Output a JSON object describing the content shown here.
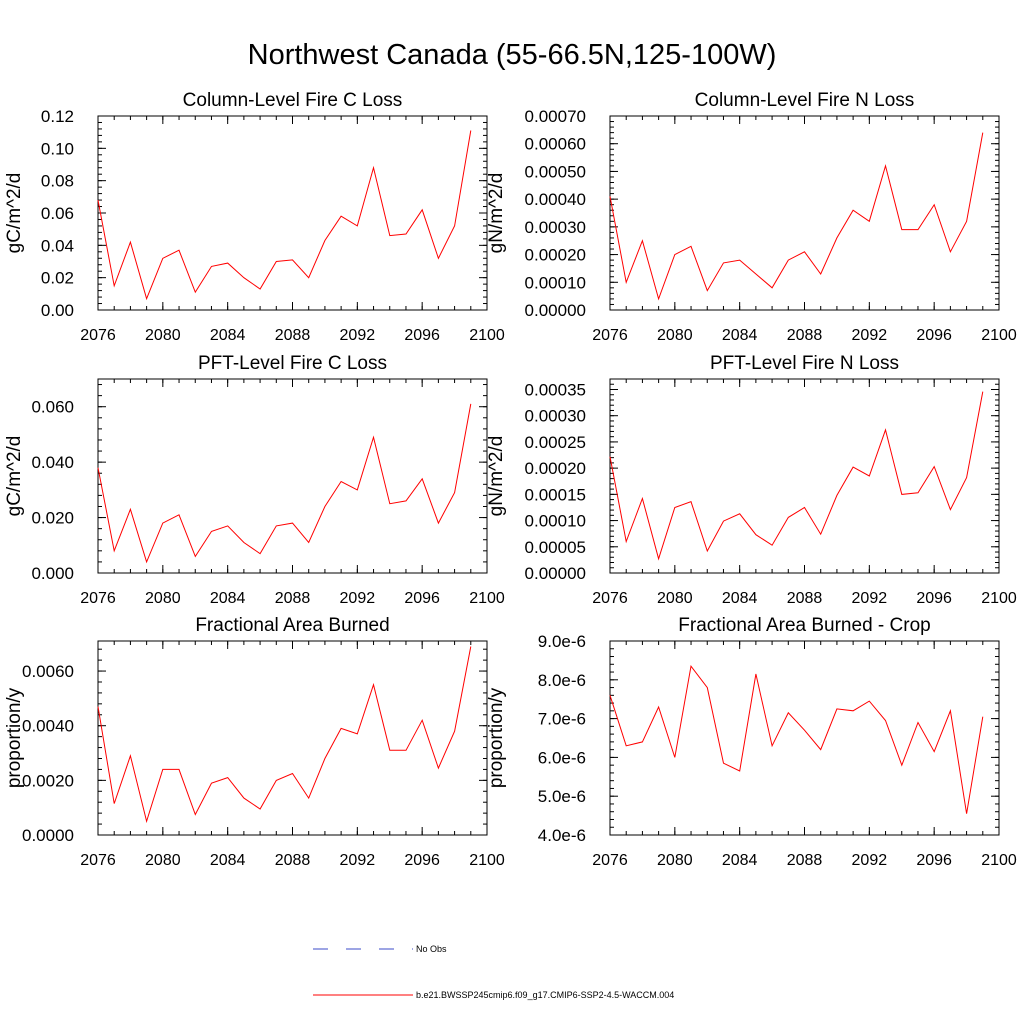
{
  "figure": {
    "title": "Northwest Canada (55-66.5N,125-100W)"
  },
  "legend": {
    "obs_label": "No Obs",
    "obs_color": "#3b4bc8",
    "model_label": "b.e21.BWSSP245cmip6.f09_g17.CMIP6-SSP2-4.5-WACCM.004",
    "model_color": "#ff0000"
  },
  "colors": {
    "line": "#ff0000",
    "axis": "#000000",
    "background": "#ffffff"
  },
  "chart_data": [
    {
      "type": "line",
      "title": "Column-Level Fire C Loss",
      "xlabel": "",
      "ylabel": "gC/m^2/d",
      "xlim": [
        2076,
        2100
      ],
      "ylim": [
        0,
        0.12
      ],
      "xticks": [
        2076,
        2080,
        2084,
        2088,
        2092,
        2096,
        2100
      ],
      "yticks": [
        0,
        0.02,
        0.04,
        0.06,
        0.08,
        0.1,
        0.12
      ],
      "ytick_labels": [
        "0.00",
        "0.02",
        "0.04",
        "0.06",
        "0.08",
        "0.10",
        "0.12"
      ],
      "grid": false,
      "x": [
        2076,
        2077,
        2078,
        2079,
        2080,
        2081,
        2082,
        2083,
        2084,
        2085,
        2086,
        2087,
        2088,
        2089,
        2090,
        2091,
        2092,
        2093,
        2094,
        2095,
        2096,
        2097,
        2098,
        2099
      ],
      "values": [
        0.068,
        0.015,
        0.042,
        0.007,
        0.032,
        0.037,
        0.011,
        0.027,
        0.029,
        0.02,
        0.013,
        0.03,
        0.031,
        0.02,
        0.043,
        0.058,
        0.052,
        0.088,
        0.046,
        0.047,
        0.062,
        0.032,
        0.052,
        0.111
      ]
    },
    {
      "type": "line",
      "title": "Column-Level Fire N Loss",
      "xlabel": "",
      "ylabel": "gN/m^2/d",
      "xlim": [
        2076,
        2100
      ],
      "ylim": [
        0,
        0.0007
      ],
      "xticks": [
        2076,
        2080,
        2084,
        2088,
        2092,
        2096,
        2100
      ],
      "yticks": [
        0,
        0.0001,
        0.0002,
        0.0003,
        0.0004,
        0.0005,
        0.0006,
        0.0007
      ],
      "ytick_labels": [
        "0.00000",
        "0.00010",
        "0.00020",
        "0.00030",
        "0.00040",
        "0.00050",
        "0.00060",
        "0.00070"
      ],
      "grid": false,
      "x": [
        2076,
        2077,
        2078,
        2079,
        2080,
        2081,
        2082,
        2083,
        2084,
        2085,
        2086,
        2087,
        2088,
        2089,
        2090,
        2091,
        2092,
        2093,
        2094,
        2095,
        2096,
        2097,
        2098,
        2099
      ],
      "values": [
        0.00041,
        0.0001,
        0.00025,
        4e-05,
        0.0002,
        0.00023,
        7e-05,
        0.00017,
        0.00018,
        0.00013,
        8e-05,
        0.00018,
        0.00021,
        0.00013,
        0.00026,
        0.00036,
        0.00032,
        0.00052,
        0.00029,
        0.00029,
        0.00038,
        0.00021,
        0.00032,
        0.00064
      ]
    },
    {
      "type": "line",
      "title": "PFT-Level Fire C Loss",
      "xlabel": "",
      "ylabel": "gC/m^2/d",
      "xlim": [
        2076,
        2100
      ],
      "ylim": [
        0,
        0.07
      ],
      "xticks": [
        2076,
        2080,
        2084,
        2088,
        2092,
        2096,
        2100
      ],
      "yticks": [
        0,
        0.02,
        0.04,
        0.06
      ],
      "ytick_labels": [
        "0.000",
        "0.020",
        "0.040",
        "0.060"
      ],
      "grid": false,
      "x": [
        2076,
        2077,
        2078,
        2079,
        2080,
        2081,
        2082,
        2083,
        2084,
        2085,
        2086,
        2087,
        2088,
        2089,
        2090,
        2091,
        2092,
        2093,
        2094,
        2095,
        2096,
        2097,
        2098,
        2099
      ],
      "values": [
        0.038,
        0.008,
        0.023,
        0.004,
        0.018,
        0.021,
        0.006,
        0.015,
        0.017,
        0.011,
        0.007,
        0.017,
        0.018,
        0.011,
        0.024,
        0.033,
        0.03,
        0.049,
        0.025,
        0.026,
        0.034,
        0.018,
        0.029,
        0.061
      ]
    },
    {
      "type": "line",
      "title": "PFT-Level Fire N Loss",
      "xlabel": "",
      "ylabel": "gN/m^2/d",
      "xlim": [
        2076,
        2100
      ],
      "ylim": [
        0,
        0.00037
      ],
      "xticks": [
        2076,
        2080,
        2084,
        2088,
        2092,
        2096,
        2100
      ],
      "yticks": [
        0,
        5e-05,
        0.0001,
        0.00015,
        0.0002,
        0.00025,
        0.0003,
        0.00035
      ],
      "ytick_labels": [
        "0.00000",
        "0.00005",
        "0.00010",
        "0.00015",
        "0.00020",
        "0.00025",
        "0.00030",
        "0.00035"
      ],
      "grid": false,
      "x": [
        2076,
        2077,
        2078,
        2079,
        2080,
        2081,
        2082,
        2083,
        2084,
        2085,
        2086,
        2087,
        2088,
        2089,
        2090,
        2091,
        2092,
        2093,
        2094,
        2095,
        2096,
        2097,
        2098,
        2099
      ],
      "values": [
        0.000222,
        6e-05,
        0.000142,
        2.7e-05,
        0.000125,
        0.000136,
        4.2e-05,
        9.9e-05,
        0.000113,
        7.3e-05,
        5.3e-05,
        0.000106,
        0.000125,
        7.4e-05,
        0.000148,
        0.000202,
        0.000185,
        0.000273,
        0.00015,
        0.000153,
        0.000203,
        0.000121,
        0.000182,
        0.000346
      ]
    },
    {
      "type": "line",
      "title": "Fractional Area Burned",
      "xlabel": "",
      "ylabel": "proportion/y",
      "xlim": [
        2076,
        2100
      ],
      "ylim": [
        0,
        0.0071
      ],
      "xticks": [
        2076,
        2080,
        2084,
        2088,
        2092,
        2096,
        2100
      ],
      "yticks": [
        0,
        0.002,
        0.004,
        0.006
      ],
      "ytick_labels": [
        "0.0000",
        "0.0020",
        "0.0040",
        "0.0060"
      ],
      "grid": false,
      "x": [
        2076,
        2077,
        2078,
        2079,
        2080,
        2081,
        2082,
        2083,
        2084,
        2085,
        2086,
        2087,
        2088,
        2089,
        2090,
        2091,
        2092,
        2093,
        2094,
        2095,
        2096,
        2097,
        2098,
        2099
      ],
      "values": [
        0.0047,
        0.00115,
        0.0029,
        0.0005,
        0.0024,
        0.0024,
        0.00075,
        0.0019,
        0.0021,
        0.00135,
        0.00095,
        0.002,
        0.00225,
        0.00135,
        0.0028,
        0.0039,
        0.0037,
        0.0055,
        0.0031,
        0.0031,
        0.0042,
        0.00245,
        0.0038,
        0.0069
      ]
    },
    {
      "type": "line",
      "title": "Fractional Area Burned - Crop",
      "xlabel": "",
      "ylabel": "proportion/y",
      "xlim": [
        2076,
        2100
      ],
      "ylim": [
        4e-06,
        9e-06
      ],
      "xticks": [
        2076,
        2080,
        2084,
        2088,
        2092,
        2096,
        2100
      ],
      "yticks": [
        4e-06,
        5e-06,
        6e-06,
        7e-06,
        8e-06,
        9e-06
      ],
      "ytick_labels": [
        "4.0e-6",
        "5.0e-6",
        "6.0e-6",
        "7.0e-6",
        "8.0e-6",
        "9.0e-6"
      ],
      "grid": false,
      "x": [
        2076,
        2077,
        2078,
        2079,
        2080,
        2081,
        2082,
        2083,
        2084,
        2085,
        2086,
        2087,
        2088,
        2089,
        2090,
        2091,
        2092,
        2093,
        2094,
        2095,
        2096,
        2097,
        2098,
        2099
      ],
      "values": [
        7.6e-06,
        6.3e-06,
        6.4e-06,
        7.3e-06,
        6e-06,
        8.35e-06,
        7.8e-06,
        5.85e-06,
        5.65e-06,
        8.15e-06,
        6.3e-06,
        7.15e-06,
        6.7e-06,
        6.2e-06,
        7.25e-06,
        7.2e-06,
        7.45e-06,
        6.95e-06,
        5.8e-06,
        6.9e-06,
        6.15e-06,
        7.2e-06,
        4.55e-06,
        7.05e-06
      ]
    }
  ]
}
